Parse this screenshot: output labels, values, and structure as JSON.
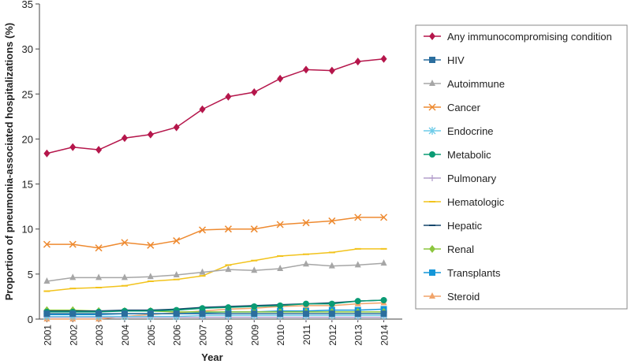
{
  "chart_data": {
    "type": "line",
    "title": "",
    "xlabel": "Year",
    "ylabel": "Proportion of pneumonia-associated hospitalizations (%)",
    "ylim": [
      0,
      35
    ],
    "yticks": [
      0,
      5,
      10,
      15,
      20,
      25,
      30,
      35
    ],
    "grid": false,
    "legend_position": "right",
    "x": [
      "2001",
      "2002",
      "2003",
      "2004",
      "2005",
      "2006",
      "2007",
      "2008",
      "2009",
      "2010",
      "2011",
      "2012",
      "2013",
      "2014"
    ],
    "series": [
      {
        "name": "Any immunocompromising condition",
        "color": "#b5164b",
        "marker": "diamond",
        "values": [
          18.4,
          19.1,
          18.8,
          20.1,
          20.5,
          21.3,
          23.3,
          24.7,
          25.2,
          26.7,
          27.7,
          27.6,
          28.6,
          28.9
        ]
      },
      {
        "name": "HIV",
        "color": "#2b6e9e",
        "marker": "square",
        "values": [
          0.6,
          0.6,
          0.6,
          0.6,
          0.6,
          0.6,
          0.6,
          0.6,
          0.6,
          0.6,
          0.6,
          0.6,
          0.6,
          0.6
        ]
      },
      {
        "name": "Autoimmune",
        "color": "#a6a6a6",
        "marker": "triangle",
        "values": [
          4.2,
          4.6,
          4.6,
          4.6,
          4.7,
          4.9,
          5.2,
          5.5,
          5.4,
          5.6,
          6.1,
          5.9,
          6.0,
          6.2
        ]
      },
      {
        "name": "Cancer",
        "color": "#ee8a30",
        "marker": "x",
        "values": [
          8.3,
          8.3,
          7.9,
          8.5,
          8.2,
          8.7,
          9.9,
          10.0,
          10.0,
          10.5,
          10.7,
          10.9,
          11.3,
          11.3
        ]
      },
      {
        "name": "Endocrine",
        "color": "#6ccbe8",
        "marker": "asterisk",
        "values": [
          0.3,
          0.3,
          0.3,
          0.3,
          0.3,
          0.3,
          0.4,
          0.4,
          0.4,
          0.4,
          0.4,
          0.4,
          0.4,
          0.4
        ]
      },
      {
        "name": "Metabolic",
        "color": "#0a9b74",
        "marker": "circle",
        "values": [
          0.8,
          0.8,
          0.8,
          0.9,
          0.9,
          1.0,
          1.2,
          1.3,
          1.4,
          1.5,
          1.7,
          1.7,
          2.0,
          2.1
        ]
      },
      {
        "name": "Pulmonary",
        "color": "#b49fcb",
        "marker": "plus",
        "values": [
          0.2,
          0.2,
          0.2,
          0.2,
          0.2,
          0.2,
          0.2,
          0.2,
          0.2,
          0.2,
          0.2,
          0.2,
          0.2,
          0.2
        ]
      },
      {
        "name": "Hematologic",
        "color": "#f2c31c",
        "marker": "dash",
        "values": [
          3.1,
          3.4,
          3.5,
          3.7,
          4.2,
          4.4,
          4.8,
          6.0,
          6.5,
          7.0,
          7.2,
          7.4,
          7.8,
          7.8
        ]
      },
      {
        "name": "Hepatic",
        "color": "#15476b",
        "marker": "dash",
        "values": [
          0.9,
          0.9,
          0.9,
          1.0,
          1.0,
          1.1,
          1.3,
          1.4,
          1.5,
          1.6,
          1.7,
          1.8,
          2.0,
          2.1
        ]
      },
      {
        "name": "Renal",
        "color": "#8cc63e",
        "marker": "diamond",
        "values": [
          1.0,
          1.0,
          0.9,
          0.9,
          0.9,
          0.8,
          0.8,
          0.8,
          0.8,
          0.8,
          0.8,
          0.8,
          0.8,
          0.8
        ]
      },
      {
        "name": "Transplants",
        "color": "#1496d8",
        "marker": "square",
        "values": [
          0.5,
          0.5,
          0.5,
          0.6,
          0.6,
          0.6,
          0.7,
          0.8,
          0.8,
          0.9,
          0.9,
          1.0,
          1.0,
          1.1
        ]
      },
      {
        "name": "Steroid",
        "color": "#f1a46a",
        "marker": "triangle",
        "values": [
          0.0,
          0.0,
          0.0,
          0.3,
          0.5,
          0.7,
          0.9,
          1.1,
          1.2,
          1.4,
          1.5,
          1.5,
          1.7,
          1.8
        ]
      }
    ]
  }
}
